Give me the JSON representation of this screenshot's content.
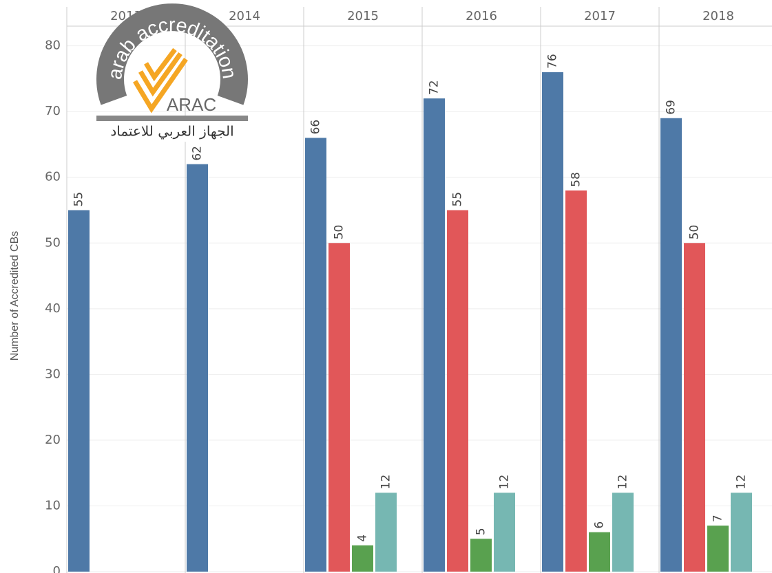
{
  "chart_data": {
    "type": "bar",
    "y_label": "Number of Accredited CBs",
    "categories": [
      "2013",
      "2014",
      "2015",
      "2016",
      "2017",
      "2018"
    ],
    "series": [
      {
        "color": "#4e79a7",
        "values": [
          55,
          62,
          66,
          72,
          76,
          69
        ]
      },
      {
        "color": "#e15759",
        "values": [
          null,
          null,
          50,
          55,
          58,
          50
        ]
      },
      {
        "color": "#59a14f",
        "values": [
          null,
          null,
          4,
          5,
          6,
          7
        ]
      },
      {
        "color": "#76b7b2",
        "values": [
          null,
          null,
          12,
          12,
          12,
          12
        ]
      }
    ],
    "ylim": [
      0,
      83
    ],
    "yticks": [
      0,
      10,
      20,
      30,
      40,
      50,
      60,
      70,
      80
    ],
    "grid": true
  },
  "logo": {
    "arc_text": "arab accreditation",
    "acronym": "ARAC",
    "arabic": "الجهاز العربي للاعتماد"
  }
}
